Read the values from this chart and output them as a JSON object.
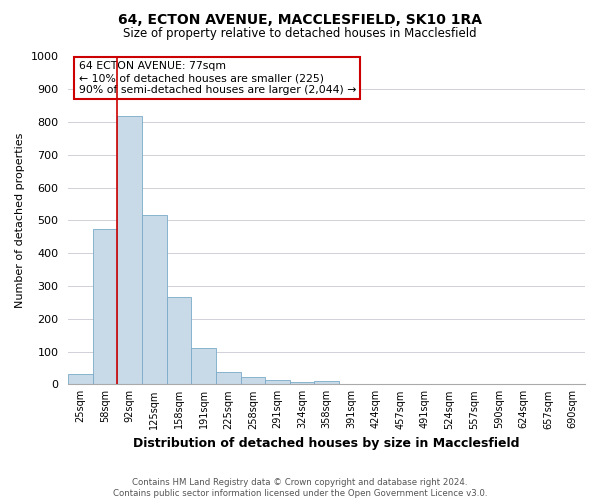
{
  "title": "64, ECTON AVENUE, MACCLESFIELD, SK10 1RA",
  "subtitle": "Size of property relative to detached houses in Macclesfield",
  "xlabel": "Distribution of detached houses by size in Macclesfield",
  "ylabel": "Number of detached properties",
  "footnote1": "Contains HM Land Registry data © Crown copyright and database right 2024.",
  "footnote2": "Contains public sector information licensed under the Open Government Licence v3.0.",
  "bin_labels": [
    "25sqm",
    "58sqm",
    "92sqm",
    "125sqm",
    "158sqm",
    "191sqm",
    "225sqm",
    "258sqm",
    "291sqm",
    "324sqm",
    "358sqm",
    "391sqm",
    "424sqm",
    "457sqm",
    "491sqm",
    "524sqm",
    "557sqm",
    "590sqm",
    "624sqm",
    "657sqm",
    "690sqm"
  ],
  "bar_values": [
    30,
    475,
    820,
    515,
    265,
    110,
    37,
    22,
    12,
    8,
    9,
    0,
    0,
    0,
    0,
    0,
    0,
    0,
    0,
    0,
    0
  ],
  "bar_color": "#c8d9e8",
  "bar_edge_color": "#7aaac8",
  "vline_x": 1.5,
  "vline_color": "#cc0000",
  "annotation_text": "64 ECTON AVENUE: 77sqm\n← 10% of detached houses are smaller (225)\n90% of semi-detached houses are larger (2,044) →",
  "annotation_box_color": "#ffffff",
  "annotation_box_edge": "#cc0000",
  "ylim": [
    0,
    1000
  ],
  "yticks": [
    0,
    100,
    200,
    300,
    400,
    500,
    600,
    700,
    800,
    900,
    1000
  ],
  "background_color": "#ffffff",
  "grid_color": "#d0d0d8"
}
